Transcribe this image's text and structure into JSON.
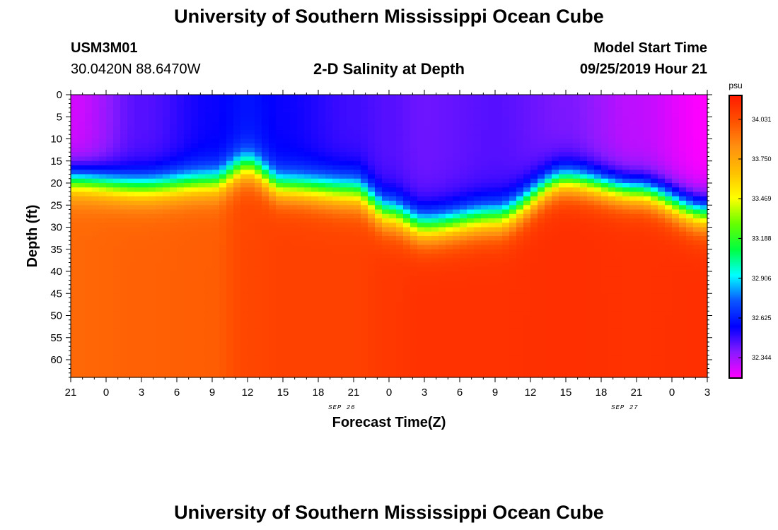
{
  "header": {
    "title": "University of Southern Mississippi Ocean Cube",
    "station_id": "USM3M01",
    "station_coords": "30.0420N 88.6470W",
    "plot_title": "2-D Salinity at Depth",
    "model_start_label": "Model Start Time",
    "model_start_value": "09/25/2019 Hour 21"
  },
  "footer": {
    "title": "University of Southern Mississippi Ocean Cube"
  },
  "chart_data": {
    "type": "heatmap",
    "title": "2-D Salinity at Depth",
    "xlabel": "Forecast Time(Z)",
    "ylabel": "Depth (ft)",
    "x_hours_since_start": [
      0,
      3,
      6,
      9,
      12,
      15,
      18,
      21,
      24,
      27,
      30,
      33,
      36,
      39,
      42,
      45,
      48,
      51,
      54
    ],
    "x_tick_labels": [
      "21",
      "0",
      "3",
      "6",
      "9",
      "12",
      "15",
      "18",
      "21",
      "0",
      "3",
      "6",
      "9",
      "12",
      "15",
      "18",
      "21",
      "0",
      "3"
    ],
    "x_date_labels": [
      {
        "text": "SEP 26",
        "hour": 23
      },
      {
        "text": "SEP 27",
        "hour": 47
      }
    ],
    "xlim": [
      0,
      54
    ],
    "ylim": [
      0,
      64
    ],
    "y_inverted": true,
    "y_ticks": [
      0,
      5,
      10,
      15,
      20,
      25,
      30,
      35,
      40,
      45,
      50,
      55,
      60
    ],
    "colorbar": {
      "unit": "psu",
      "min": 32.2,
      "max": 34.2,
      "tick_values": [
        "34.031",
        "33.750",
        "33.469",
        "33.188",
        "32.906",
        "32.625",
        "32.344"
      ],
      "colors": [
        "#ff00ff",
        "#8a1aff",
        "#0000ff",
        "#0a55ff",
        "#00ffff",
        "#00ff40",
        "#66ff00",
        "#ffff00",
        "#ffc000",
        "#ff9010",
        "#ff5000",
        "#ff1a00"
      ]
    },
    "field_profiles": [
      {
        "hour": 0,
        "surface": 32.27,
        "halocline_ft": 19.5,
        "width_ft": 8,
        "deep": 33.95
      },
      {
        "hour": 6,
        "surface": 32.45,
        "halocline_ft": 21.0,
        "width_ft": 8,
        "deep": 33.97
      },
      {
        "hour": 12,
        "surface": 32.55,
        "halocline_ft": 20.0,
        "width_ft": 8,
        "deep": 33.98
      },
      {
        "hour": 15,
        "surface": 32.6,
        "halocline_ft": 16.5,
        "width_ft": 8,
        "deep": 34.05
      },
      {
        "hour": 18,
        "surface": 32.55,
        "halocline_ft": 21.0,
        "width_ft": 8,
        "deep": 34.07
      },
      {
        "hour": 24,
        "surface": 32.48,
        "halocline_ft": 22.0,
        "width_ft": 9,
        "deep": 34.07
      },
      {
        "hour": 27,
        "surface": 32.45,
        "halocline_ft": 27.0,
        "width_ft": 9,
        "deep": 34.1
      },
      {
        "hour": 30,
        "surface": 32.42,
        "halocline_ft": 30.0,
        "width_ft": 9,
        "deep": 34.12
      },
      {
        "hour": 36,
        "surface": 32.45,
        "halocline_ft": 28.0,
        "width_ft": 9,
        "deep": 34.12
      },
      {
        "hour": 42,
        "surface": 32.4,
        "halocline_ft": 19.5,
        "width_ft": 8,
        "deep": 34.13
      },
      {
        "hour": 48,
        "surface": 32.3,
        "halocline_ft": 22.0,
        "width_ft": 8,
        "deep": 34.12
      },
      {
        "hour": 54,
        "surface": 32.2,
        "halocline_ft": 27.0,
        "width_ft": 9,
        "deep": 34.13
      }
    ]
  }
}
